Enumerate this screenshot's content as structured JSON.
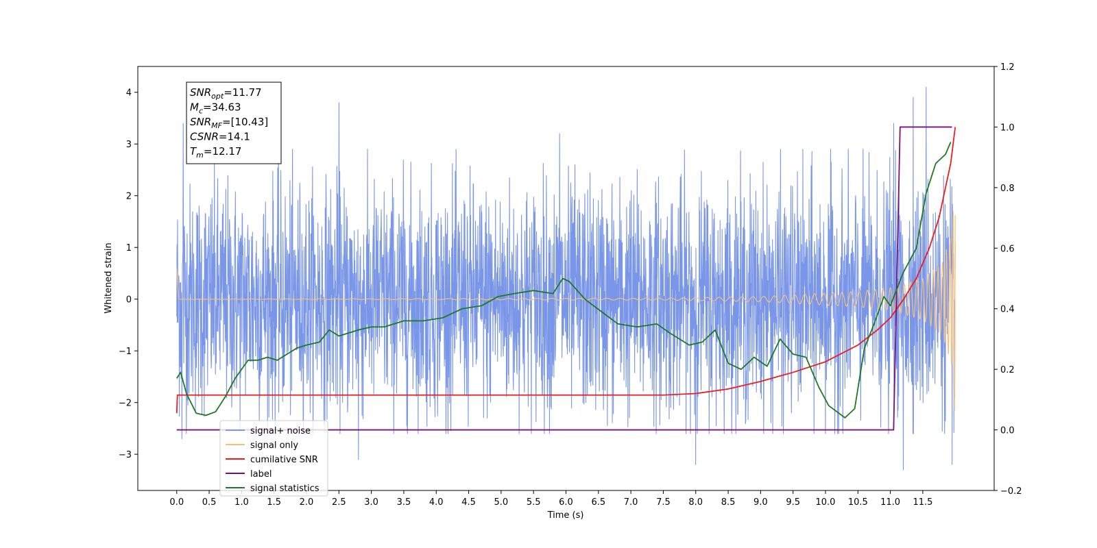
{
  "chart_data": {
    "type": "line",
    "xlabel": "Time (s)",
    "ylabel": "Whitened strain",
    "xlim": [
      -0.6,
      12.6
    ],
    "ylim": [
      -3.7,
      4.5
    ],
    "y2lim": [
      -0.2,
      1.2
    ],
    "xticks": [
      0.0,
      0.5,
      1.0,
      1.5,
      2.0,
      2.5,
      3.0,
      3.5,
      4.0,
      4.5,
      5.0,
      5.5,
      6.0,
      6.5,
      7.0,
      7.5,
      8.0,
      8.5,
      9.0,
      9.5,
      10.0,
      10.5,
      11.0,
      11.5
    ],
    "xtick_labels": [
      "0.0",
      "0.5",
      "1.0",
      "1.5",
      "2.0",
      "2.5",
      "3.0",
      "3.5",
      "4.0",
      "4.5",
      "5.0",
      "5.5",
      "6.0",
      "6.5",
      "7.0",
      "7.5",
      "8.0",
      "8.5",
      "9.0",
      "9.5",
      "10.0",
      "10.5",
      "11.0",
      "11.5"
    ],
    "yticks": [
      -3,
      -2,
      -1,
      0,
      1,
      2,
      3,
      4
    ],
    "ytick_labels": [
      "−3",
      "−2",
      "−1",
      "0",
      "1",
      "2",
      "3",
      "4"
    ],
    "y2ticks": [
      -0.2,
      0.0,
      0.2,
      0.4,
      0.6,
      0.8,
      1.0,
      1.2
    ],
    "y2tick_labels": [
      "−0.2",
      "0.0",
      "0.2",
      "0.4",
      "0.6",
      "0.8",
      "1.0",
      "1.2"
    ],
    "grid": false,
    "legend_position": "lower-left",
    "annotation": {
      "lines": [
        {
          "base": "SNR",
          "sub": "opt",
          "value": "=11.77"
        },
        {
          "base": "M",
          "sub": "c",
          "value": "=34.63"
        },
        {
          "base": "SNR",
          "sub": "MF",
          "value": "=[10.43]"
        },
        {
          "base": "CSNR",
          "sub": "",
          "value": "=14.1"
        },
        {
          "base": "T",
          "sub": "m",
          "value": "=12.17"
        }
      ]
    },
    "series": [
      {
        "name": "signal+ noise",
        "color": "#7a96e8",
        "axis": "left",
        "style": "noise",
        "x_range": [
          0.0,
          12.0
        ],
        "envelope": [
          [
            0.0,
            2.0
          ],
          [
            3.0,
            2.0
          ],
          [
            6.0,
            2.0
          ],
          [
            9.0,
            2.0
          ],
          [
            11.0,
            2.0
          ],
          [
            12.0,
            2.0
          ]
        ],
        "spikes": [
          [
            0.1,
            3.4
          ],
          [
            0.08,
            -2.7
          ],
          [
            2.5,
            3.8
          ],
          [
            2.8,
            -3.1
          ],
          [
            5.9,
            3.2
          ],
          [
            8.0,
            -3.2
          ],
          [
            11.05,
            3.4
          ],
          [
            11.35,
            3.9
          ],
          [
            11.55,
            4.1
          ],
          [
            11.2,
            -3.3
          ],
          [
            11.95,
            -3.2
          ]
        ]
      },
      {
        "name": "signal only",
        "color": "#f5c07a",
        "axis": "left",
        "style": "chirp",
        "x_range": [
          0.0,
          12.0
        ],
        "amplitude": [
          [
            0.0,
            0.0
          ],
          [
            7.5,
            0.02
          ],
          [
            9.0,
            0.05
          ],
          [
            10.5,
            0.15
          ],
          [
            11.0,
            0.22
          ],
          [
            11.5,
            0.4
          ],
          [
            11.8,
            0.7
          ],
          [
            11.95,
            1.3
          ],
          [
            12.0,
            2.5
          ]
        ]
      },
      {
        "name": "cumilative SNR",
        "color": "#ee1c1c",
        "axis": "right",
        "x": [
          0.0,
          0.01,
          7.5,
          8.0,
          8.5,
          9.0,
          9.5,
          10.0,
          10.5,
          10.8,
          11.0,
          11.2,
          11.4,
          11.6,
          11.75,
          11.85,
          11.93,
          12.0
        ],
        "y": [
          0.055,
          0.115,
          0.115,
          0.12,
          0.135,
          0.16,
          0.19,
          0.225,
          0.28,
          0.33,
          0.37,
          0.43,
          0.5,
          0.6,
          0.7,
          0.8,
          0.88,
          1.0
        ]
      },
      {
        "name": "label",
        "color": "#7a0f7a",
        "axis": "right",
        "x": [
          0.0,
          11.05,
          11.15,
          11.95
        ],
        "y": [
          0.0,
          0.0,
          1.0,
          1.0
        ]
      },
      {
        "name": "signal statistics",
        "color": "#1c7a1c",
        "axis": "right",
        "x": [
          0.0,
          0.06,
          0.15,
          0.3,
          0.45,
          0.6,
          0.75,
          0.9,
          1.0,
          1.1,
          1.25,
          1.4,
          1.55,
          1.7,
          1.85,
          2.0,
          2.2,
          2.35,
          2.5,
          2.65,
          2.8,
          3.0,
          3.2,
          3.5,
          3.8,
          4.1,
          4.4,
          4.7,
          4.95,
          5.2,
          5.5,
          5.8,
          5.95,
          6.05,
          6.3,
          6.55,
          6.8,
          7.1,
          7.4,
          7.6,
          7.9,
          8.1,
          8.3,
          8.5,
          8.7,
          8.9,
          9.1,
          9.3,
          9.5,
          9.7,
          9.9,
          10.05,
          10.3,
          10.45,
          10.6,
          10.75,
          10.9,
          11.0,
          11.2,
          11.4,
          11.55,
          11.7,
          11.85,
          11.93
        ],
        "y": [
          0.17,
          0.19,
          0.12,
          0.055,
          0.048,
          0.06,
          0.11,
          0.17,
          0.2,
          0.23,
          0.23,
          0.24,
          0.23,
          0.25,
          0.27,
          0.28,
          0.29,
          0.33,
          0.31,
          0.32,
          0.33,
          0.34,
          0.34,
          0.36,
          0.36,
          0.37,
          0.4,
          0.41,
          0.44,
          0.45,
          0.46,
          0.45,
          0.5,
          0.49,
          0.43,
          0.39,
          0.35,
          0.34,
          0.35,
          0.32,
          0.28,
          0.29,
          0.33,
          0.22,
          0.2,
          0.24,
          0.21,
          0.3,
          0.25,
          0.24,
          0.14,
          0.08,
          0.04,
          0.07,
          0.27,
          0.35,
          0.44,
          0.41,
          0.52,
          0.6,
          0.78,
          0.88,
          0.91,
          0.95
        ]
      }
    ],
    "legend_entries": [
      "signal+ noise",
      "signal only",
      "cumilative SNR",
      "label",
      "signal statistics"
    ]
  }
}
